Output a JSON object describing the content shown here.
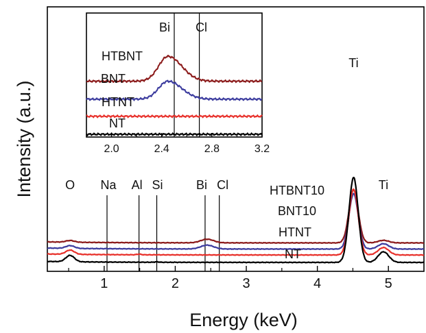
{
  "chart_data": [
    {
      "type": "line",
      "title": "",
      "xlabel": "Energy (keV)",
      "ylabel": "Intensity (a.u.)",
      "xlim": [
        0.2,
        5.5
      ],
      "x_ticks": [
        1,
        2,
        3,
        4,
        5
      ],
      "y_ticks": [],
      "grid": false,
      "legend": "inline labels on right",
      "element_lines": [
        {
          "name": "O",
          "x": 0.52
        },
        {
          "name": "Na",
          "x": 1.04
        },
        {
          "name": "Al",
          "x": 1.49
        },
        {
          "name": "Si",
          "x": 1.74
        },
        {
          "name": "Bi",
          "x": 2.42
        },
        {
          "name": "Cl",
          "x": 2.62
        },
        {
          "name": "Ti",
          "x": 4.51
        },
        {
          "name": "Ti",
          "x": 4.93
        }
      ],
      "series": [
        {
          "name": "HTBNT10",
          "color": "#8b1a1a",
          "baseline": 0.92,
          "peaks": [
            {
              "x": 0.52,
              "h": 0.08
            },
            {
              "x": 2.45,
              "h": 0.17
            },
            {
              "x": 4.51,
              "h": 2.5
            },
            {
              "x": 4.93,
              "h": 0.12
            }
          ]
        },
        {
          "name": "BNT10",
          "color": "#3b3b9e",
          "baseline": 0.63,
          "peaks": [
            {
              "x": 0.52,
              "h": 0.13
            },
            {
              "x": 2.45,
              "h": 0.18
            },
            {
              "x": 4.51,
              "h": 2.6
            },
            {
              "x": 4.93,
              "h": 0.25
            }
          ]
        },
        {
          "name": "HTNT",
          "color": "#e8302a",
          "baseline": 0.35,
          "peaks": [
            {
              "x": 0.52,
              "h": 0.2
            },
            {
              "x": 1.49,
              "h": 0.03
            },
            {
              "x": 4.51,
              "h": 3.1
            },
            {
              "x": 4.93,
              "h": 0.35
            }
          ]
        },
        {
          "name": "NT",
          "color": "#000000",
          "baseline": 0.0,
          "peaks": [
            {
              "x": 0.52,
              "h": 0.3
            },
            {
              "x": 1.74,
              "h": 0.02
            },
            {
              "x": 4.51,
              "h": 4.0
            },
            {
              "x": 4.93,
              "h": 0.5
            }
          ]
        }
      ]
    },
    {
      "type": "line",
      "title": "",
      "xlabel": "",
      "ylabel": "",
      "xlim": [
        1.8,
        3.2
      ],
      "x_ticks": [
        "2.0",
        "2.4",
        "2.8",
        "3.2"
      ],
      "grid": false,
      "legend": "inline labels on left",
      "element_lines": [
        {
          "name": "Bi",
          "x": 2.5
        },
        {
          "name": "Cl",
          "x": 2.7
        }
      ],
      "series": [
        {
          "name": "HTBNT",
          "color": "#8b1a1a",
          "baseline": 3.1,
          "peak": {
            "x": 2.45,
            "h": 1.45
          }
        },
        {
          "name": "BNT",
          "color": "#3b3b9e",
          "baseline": 2.05,
          "peak": {
            "x": 2.45,
            "h": 1.05
          }
        },
        {
          "name": "HTNT",
          "color": "#e8302a",
          "baseline": 1.05,
          "peak": {
            "x": 2.45,
            "h": 0.0
          }
        },
        {
          "name": "NT",
          "color": "#000000",
          "baseline": 0.0,
          "peak": {
            "x": 2.45,
            "h": 0.0
          }
        }
      ]
    }
  ]
}
